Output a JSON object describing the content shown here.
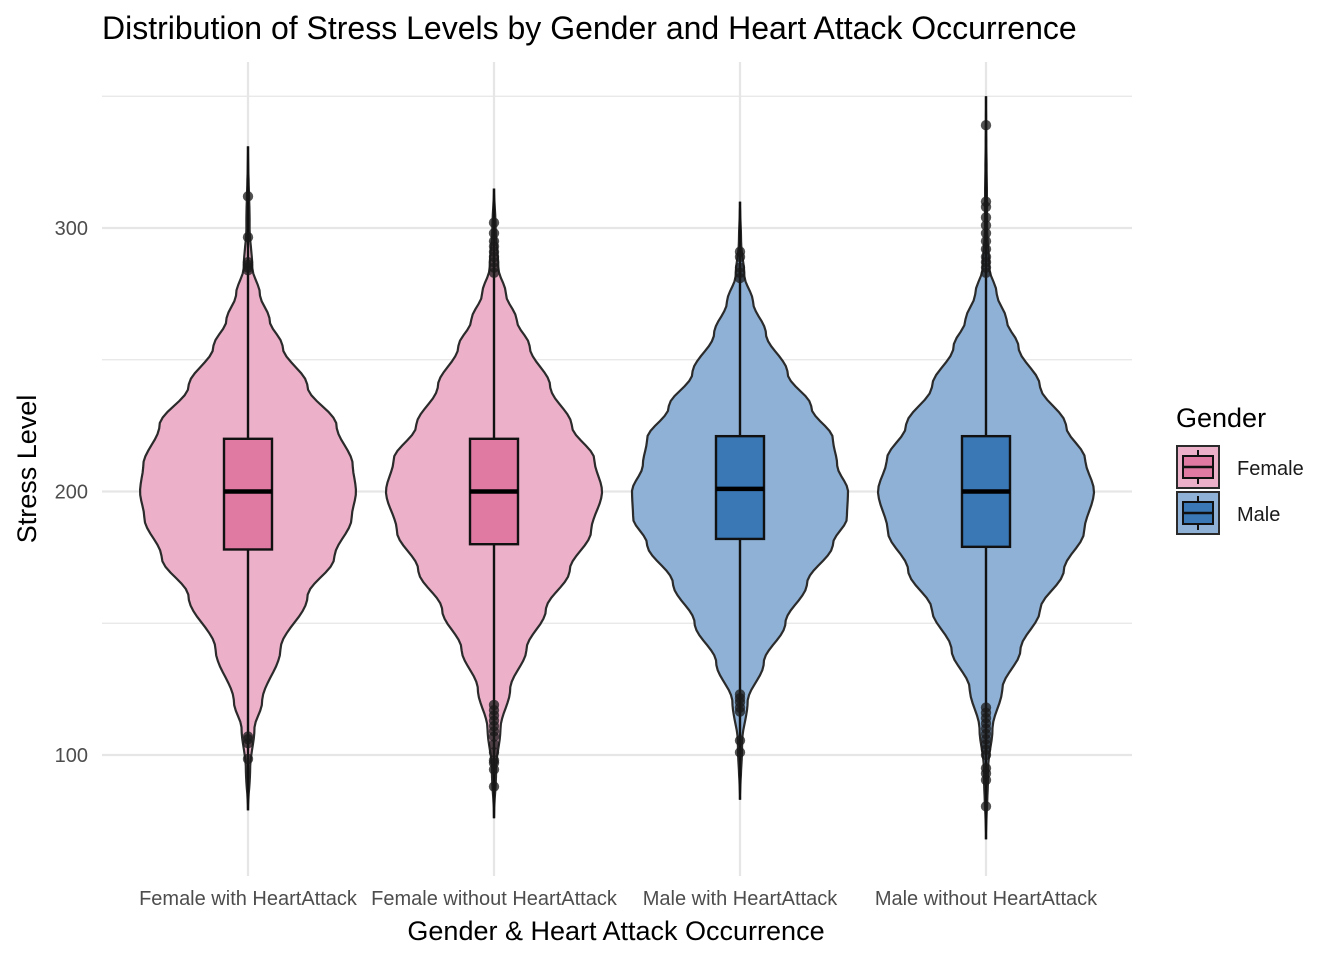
{
  "chart_data": {
    "type": "violin",
    "title": "Distribution of Stress Levels by Gender and Heart Attack Occurrence",
    "xlabel": "Gender & Heart Attack Occurrence",
    "ylabel": "Stress Level",
    "ylim": [
      55,
      350
    ],
    "yticks": [
      100,
      200,
      300
    ],
    "categories": [
      "Female with HeartAttack",
      "Female without HeartAttack",
      "Male with HeartAttack",
      "Male without HeartAttack"
    ],
    "legend": {
      "title": "Gender",
      "entries": [
        {
          "label": "Female",
          "violin_color": "#ecb1c9",
          "box_color": "#e07aa3"
        },
        {
          "label": "Male",
          "violin_color": "#8eb1d5",
          "box_color": "#3a78b5"
        }
      ]
    },
    "series": [
      {
        "category": "Female with HeartAttack",
        "gender": "Female",
        "box": {
          "q1": 178,
          "median": 200,
          "q3": 220
        },
        "whisker_range": [
          79,
          331
        ],
        "outliers": [
          98.5,
          104.5,
          106,
          107,
          284,
          285,
          286,
          287,
          296.5,
          312
        ],
        "density": [
          [
            79,
            0.0
          ],
          [
            95,
            0.02
          ],
          [
            110,
            0.06
          ],
          [
            120,
            0.13
          ],
          [
            140,
            0.3
          ],
          [
            160,
            0.55
          ],
          [
            175,
            0.8
          ],
          [
            190,
            0.96
          ],
          [
            200,
            1.0
          ],
          [
            210,
            0.97
          ],
          [
            225,
            0.82
          ],
          [
            240,
            0.55
          ],
          [
            255,
            0.32
          ],
          [
            265,
            0.2
          ],
          [
            275,
            0.11
          ],
          [
            285,
            0.04
          ],
          [
            300,
            0.015
          ],
          [
            331,
            0.0
          ]
        ]
      },
      {
        "category": "Female without HeartAttack",
        "gender": "Female",
        "box": {
          "q1": 180,
          "median": 200,
          "q3": 220
        },
        "whisker_range": [
          76,
          315
        ],
        "outliers": [
          88,
          94.5,
          97,
          98,
          101,
          104,
          107,
          109,
          111,
          113,
          115,
          117,
          119,
          283,
          285,
          287,
          289,
          291,
          293,
          295,
          298,
          302
        ],
        "density": [
          [
            76,
            0.0
          ],
          [
            95,
            0.02
          ],
          [
            110,
            0.06
          ],
          [
            125,
            0.15
          ],
          [
            140,
            0.3
          ],
          [
            155,
            0.48
          ],
          [
            170,
            0.7
          ],
          [
            185,
            0.9
          ],
          [
            200,
            1.0
          ],
          [
            212,
            0.93
          ],
          [
            225,
            0.72
          ],
          [
            240,
            0.52
          ],
          [
            255,
            0.33
          ],
          [
            265,
            0.21
          ],
          [
            275,
            0.11
          ],
          [
            285,
            0.04
          ],
          [
            300,
            0.015
          ],
          [
            315,
            0.0
          ]
        ]
      },
      {
        "category": "Male with HeartAttack",
        "gender": "Male",
        "box": {
          "q1": 182,
          "median": 201,
          "q3": 221
        },
        "whisker_range": [
          83,
          310
        ],
        "outliers": [
          101,
          105.5,
          116.5,
          118,
          120,
          121.5,
          123,
          281,
          283,
          285,
          289,
          291
        ],
        "density": [
          [
            83,
            0.0
          ],
          [
            105,
            0.02
          ],
          [
            120,
            0.07
          ],
          [
            135,
            0.22
          ],
          [
            150,
            0.42
          ],
          [
            165,
            0.62
          ],
          [
            180,
            0.86
          ],
          [
            190,
            0.99
          ],
          [
            200,
            1.0
          ],
          [
            210,
            0.9
          ],
          [
            220,
            0.86
          ],
          [
            232,
            0.66
          ],
          [
            245,
            0.44
          ],
          [
            260,
            0.24
          ],
          [
            272,
            0.12
          ],
          [
            282,
            0.04
          ],
          [
            295,
            0.01
          ],
          [
            310,
            0.0
          ]
        ]
      },
      {
        "category": "Male without HeartAttack",
        "gender": "Male",
        "box": {
          "q1": 179,
          "median": 200,
          "q3": 221
        },
        "whisker_range": [
          68,
          350
        ],
        "outliers": [
          80.5,
          90.5,
          93,
          95,
          100,
          102,
          104,
          106,
          108,
          110,
          112,
          114,
          116,
          118,
          283,
          285,
          287,
          289,
          292,
          295,
          298,
          301,
          304,
          308,
          310,
          339
        ],
        "density": [
          [
            68,
            0.0
          ],
          [
            95,
            0.02
          ],
          [
            110,
            0.06
          ],
          [
            125,
            0.15
          ],
          [
            140,
            0.32
          ],
          [
            155,
            0.5
          ],
          [
            170,
            0.72
          ],
          [
            185,
            0.91
          ],
          [
            200,
            1.0
          ],
          [
            212,
            0.92
          ],
          [
            225,
            0.74
          ],
          [
            240,
            0.5
          ],
          [
            255,
            0.3
          ],
          [
            265,
            0.19
          ],
          [
            275,
            0.1
          ],
          [
            285,
            0.03
          ],
          [
            300,
            0.01
          ],
          [
            350,
            0.0
          ]
        ]
      }
    ]
  }
}
